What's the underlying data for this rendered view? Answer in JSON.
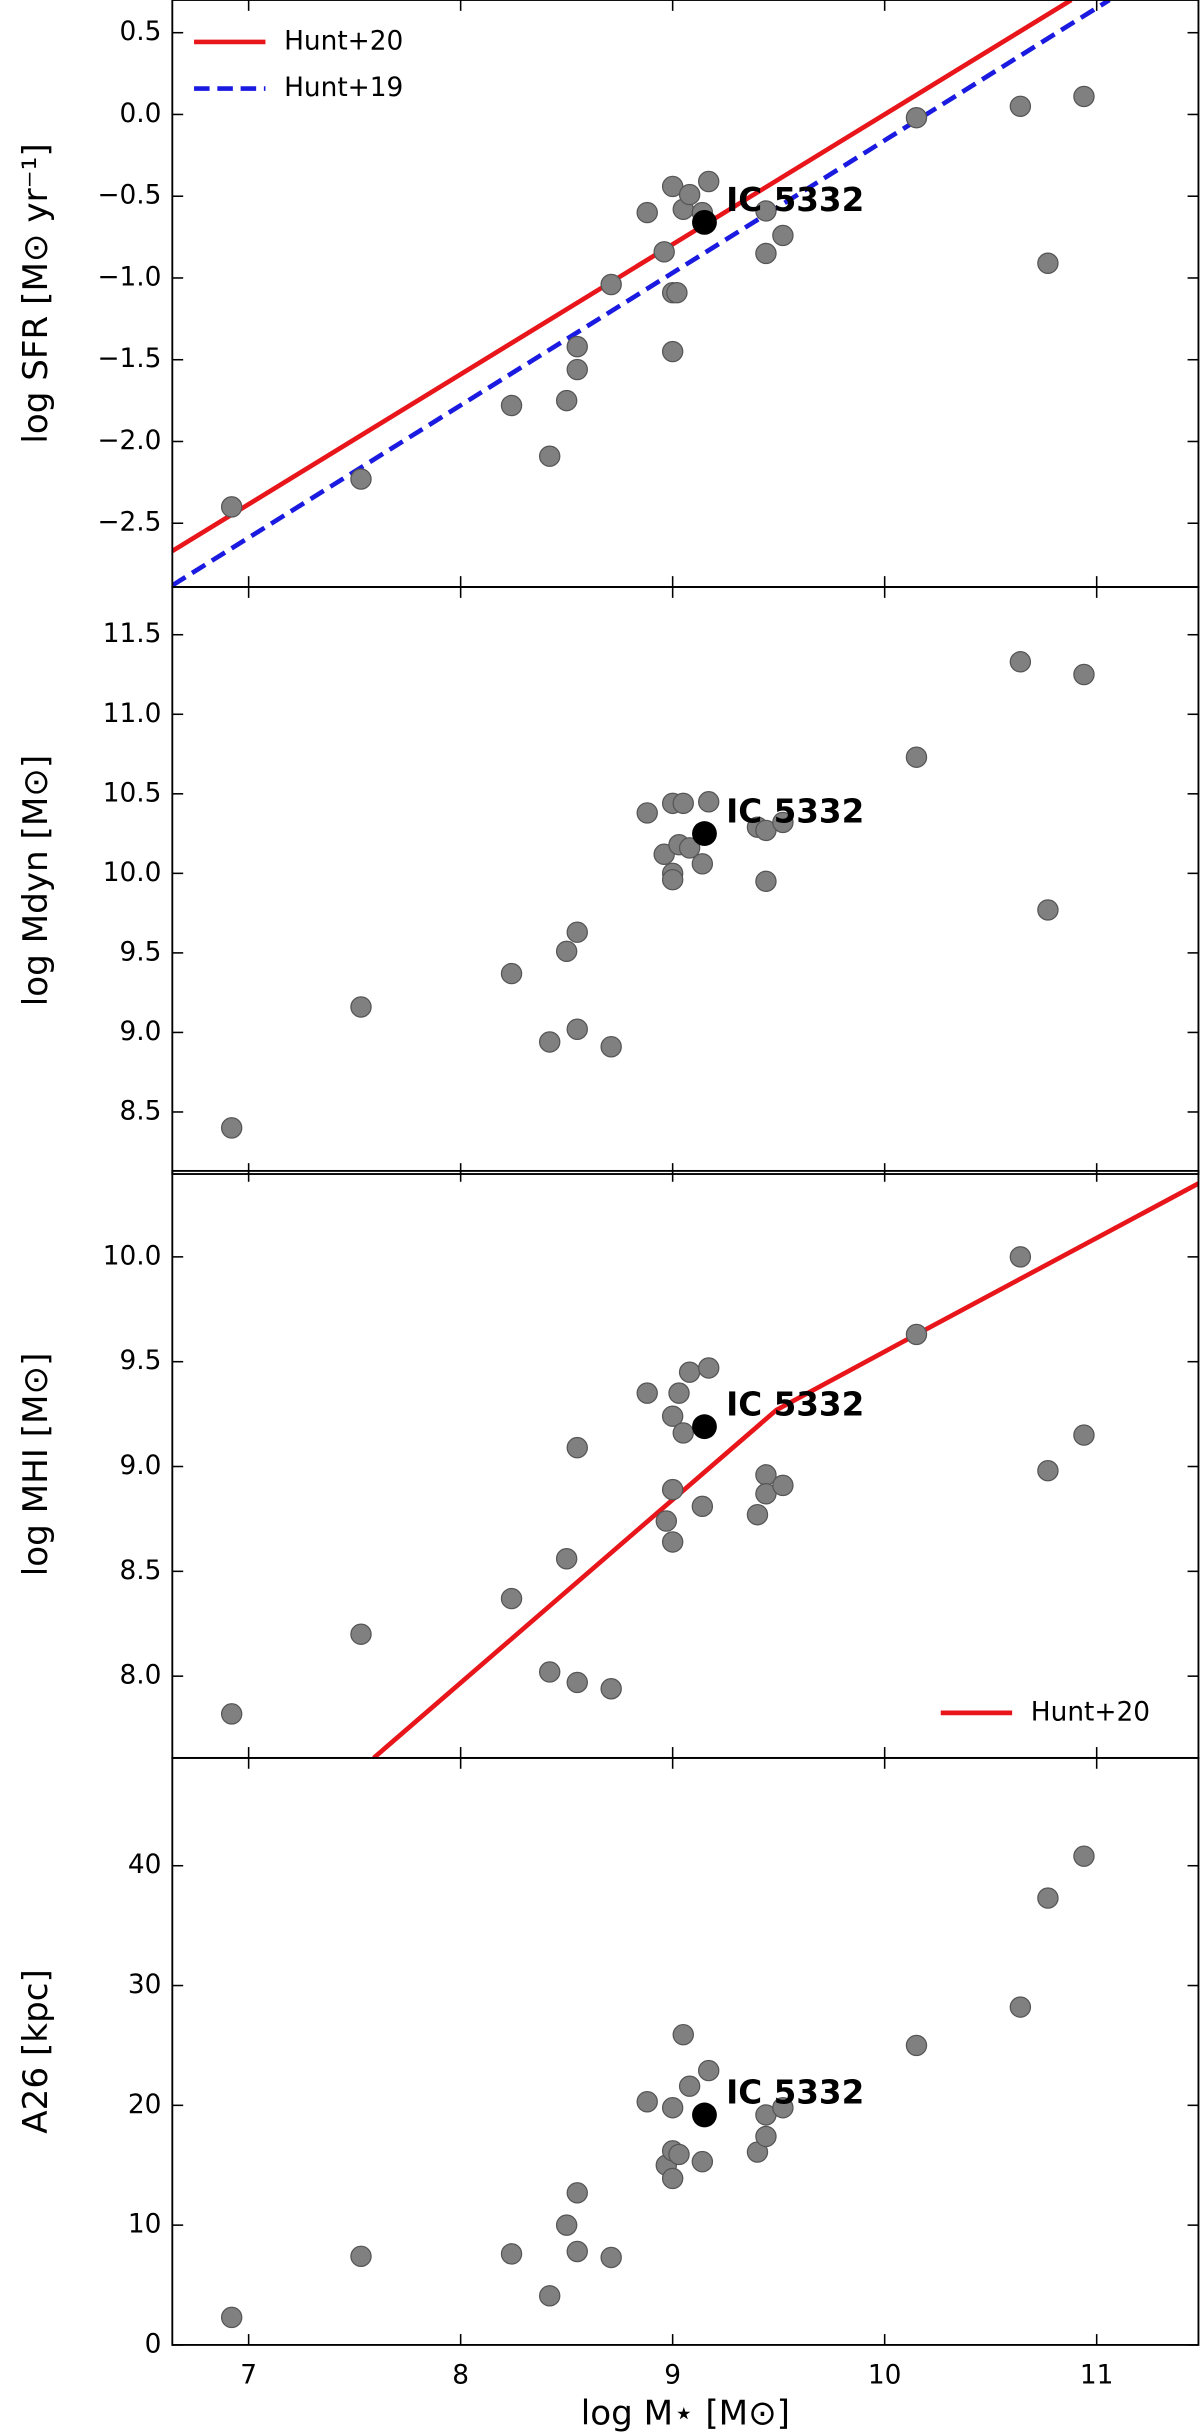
{
  "chart_data": [
    {
      "type": "scatter",
      "ylabel": "log SFR [M⊙ yr⁻¹]",
      "xlim": [
        6.64,
        11.48
      ],
      "xticks": [
        7,
        8,
        9,
        10,
        11
      ],
      "ylim": [
        -2.89,
        0.7
      ],
      "yticks": [
        {
          "value": 0.5,
          "label": "0.5"
        },
        {
          "value": 0,
          "label": "0.0"
        },
        {
          "value": -0.5,
          "label": "−0.5"
        },
        {
          "value": -1,
          "label": "−1.0"
        },
        {
          "value": -1.5,
          "label": "−1.5"
        },
        {
          "value": -2,
          "label": "−2.0"
        },
        {
          "value": -2.5,
          "label": "−2.5"
        }
      ],
      "legend": "upper left",
      "scatter": {
        "color": "#808080",
        "x": [
          6.92,
          7.53,
          8.24,
          8.42,
          8.5,
          8.55,
          8.55,
          8.71,
          8.88,
          8.96,
          9.0,
          9.0,
          9.02,
          9.0,
          9.05,
          9.08,
          9.14,
          9.17,
          9.44,
          9.44,
          9.52,
          10.15,
          10.64,
          10.77,
          10.94
        ],
        "values": [
          -2.4,
          -2.23,
          -1.78,
          -2.09,
          -1.75,
          -1.42,
          -1.56,
          -1.04,
          -0.6,
          -0.84,
          -1.45,
          -1.09,
          -1.09,
          -0.44,
          -0.58,
          -0.49,
          -0.6,
          -0.41,
          -0.59,
          -0.85,
          -0.74,
          -0.02,
          0.05,
          -0.91,
          0.11
        ]
      },
      "highlight": {
        "label": "IC 5332",
        "x": 9.15,
        "value": -0.66,
        "color": "#000000"
      },
      "series": [
        {
          "name": "Hunt+20",
          "color": "#e8161b",
          "dashed": false,
          "x": [
            6.64,
            10.88
          ],
          "values": [
            -2.67,
            0.7
          ]
        },
        {
          "name": "Hunt+19",
          "color": "#1a1ae0",
          "dashed": true,
          "x": [
            6.64,
            11.06
          ],
          "values": [
            -2.88,
            0.7
          ]
        }
      ]
    },
    {
      "type": "scatter",
      "ylabel": "log Mdyn [M⊙]",
      "xlim": [
        6.64,
        11.48
      ],
      "xticks": [
        7,
        8,
        9,
        10,
        11
      ],
      "ylim": [
        8.11,
        11.8
      ],
      "yticks": [
        11.5,
        {
          "value": 11,
          "label": "11.0"
        },
        10.5,
        {
          "value": 10,
          "label": "10.0"
        },
        9.5,
        {
          "value": 9,
          "label": "9.0"
        },
        8.5
      ],
      "scatter": {
        "color": "#808080",
        "x": [
          6.92,
          7.53,
          8.24,
          8.42,
          8.5,
          8.55,
          8.55,
          8.71,
          8.88,
          8.96,
          9.0,
          9.0,
          9.0,
          9.05,
          9.03,
          9.08,
          9.14,
          9.17,
          9.4,
          9.44,
          9.44,
          9.52,
          10.15,
          10.64,
          10.77,
          10.94
        ],
        "values": [
          8.4,
          9.16,
          9.37,
          8.94,
          9.51,
          9.63,
          9.02,
          8.91,
          10.38,
          10.12,
          10.0,
          9.96,
          10.44,
          10.44,
          10.18,
          10.16,
          10.06,
          10.45,
          10.29,
          10.27,
          9.95,
          10.32,
          10.73,
          11.33,
          9.77,
          11.25
        ]
      },
      "highlight": {
        "label": "IC 5332",
        "x": 9.15,
        "value": 10.25,
        "color": "#000000"
      },
      "series": []
    },
    {
      "type": "scatter",
      "ylabel": "log MHI [M⊙]",
      "xlim": [
        6.64,
        11.48
      ],
      "xticks": [
        7,
        8,
        9,
        10,
        11
      ],
      "ylim": [
        7.61,
        10.41
      ],
      "yticks": [
        {
          "value": 10,
          "label": "10.0"
        },
        9.5,
        {
          "value": 9,
          "label": "9.0"
        },
        8.5,
        {
          "value": 8,
          "label": "8.0"
        }
      ],
      "legend": "lower right",
      "scatter": {
        "color": "#808080",
        "x": [
          6.92,
          7.53,
          8.24,
          8.42,
          8.5,
          8.55,
          8.55,
          8.71,
          8.88,
          8.97,
          9.0,
          9.0,
          9.0,
          9.03,
          9.05,
          9.08,
          9.14,
          9.17,
          9.4,
          9.44,
          9.44,
          9.52,
          10.15,
          10.64,
          10.77,
          10.94
        ],
        "values": [
          7.82,
          8.2,
          8.37,
          8.02,
          8.56,
          9.09,
          7.97,
          7.94,
          9.35,
          8.74,
          8.89,
          8.64,
          9.24,
          9.35,
          9.16,
          9.45,
          8.81,
          9.47,
          8.77,
          8.96,
          8.87,
          8.91,
          9.63,
          10.0,
          8.98,
          9.15
        ]
      },
      "highlight": {
        "label": "IC 5332",
        "x": 9.15,
        "value": 9.19,
        "color": "#000000"
      },
      "series": [
        {
          "name": "Hunt+20",
          "color": "#e8161b",
          "dashed": false,
          "x": [
            7.59,
            9.49,
            10.15,
            11.48
          ],
          "values": [
            7.61,
            9.27,
            9.63,
            10.35
          ]
        }
      ]
    },
    {
      "type": "scatter",
      "ylabel": "A26 [kpc]",
      "xlabel": "log M⋆ [M⊙]",
      "xlim": [
        6.64,
        11.48
      ],
      "xticks": [
        7,
        8,
        9,
        10,
        11
      ],
      "ylim": [
        0,
        49
      ],
      "yticks": [
        0,
        10,
        20,
        30,
        40
      ],
      "scatter": {
        "color": "#808080",
        "x": [
          6.92,
          7.53,
          8.24,
          8.42,
          8.5,
          8.55,
          8.55,
          8.71,
          8.88,
          8.97,
          9.0,
          9.0,
          9.0,
          9.03,
          9.05,
          9.08,
          9.14,
          9.17,
          9.4,
          9.44,
          9.44,
          9.52,
          10.15,
          10.64,
          10.77,
          10.94
        ],
        "values": [
          2.3,
          7.4,
          7.6,
          4.1,
          10.0,
          12.7,
          7.8,
          7.3,
          20.3,
          15.0,
          13.9,
          19.8,
          16.2,
          15.9,
          25.9,
          21.6,
          15.3,
          22.9,
          16.1,
          19.2,
          17.4,
          19.8,
          25.0,
          28.2,
          37.3,
          40.8
        ]
      },
      "highlight": {
        "label": "IC 5332",
        "x": 9.15,
        "value": 19.2,
        "color": "#000000"
      },
      "series": []
    }
  ]
}
